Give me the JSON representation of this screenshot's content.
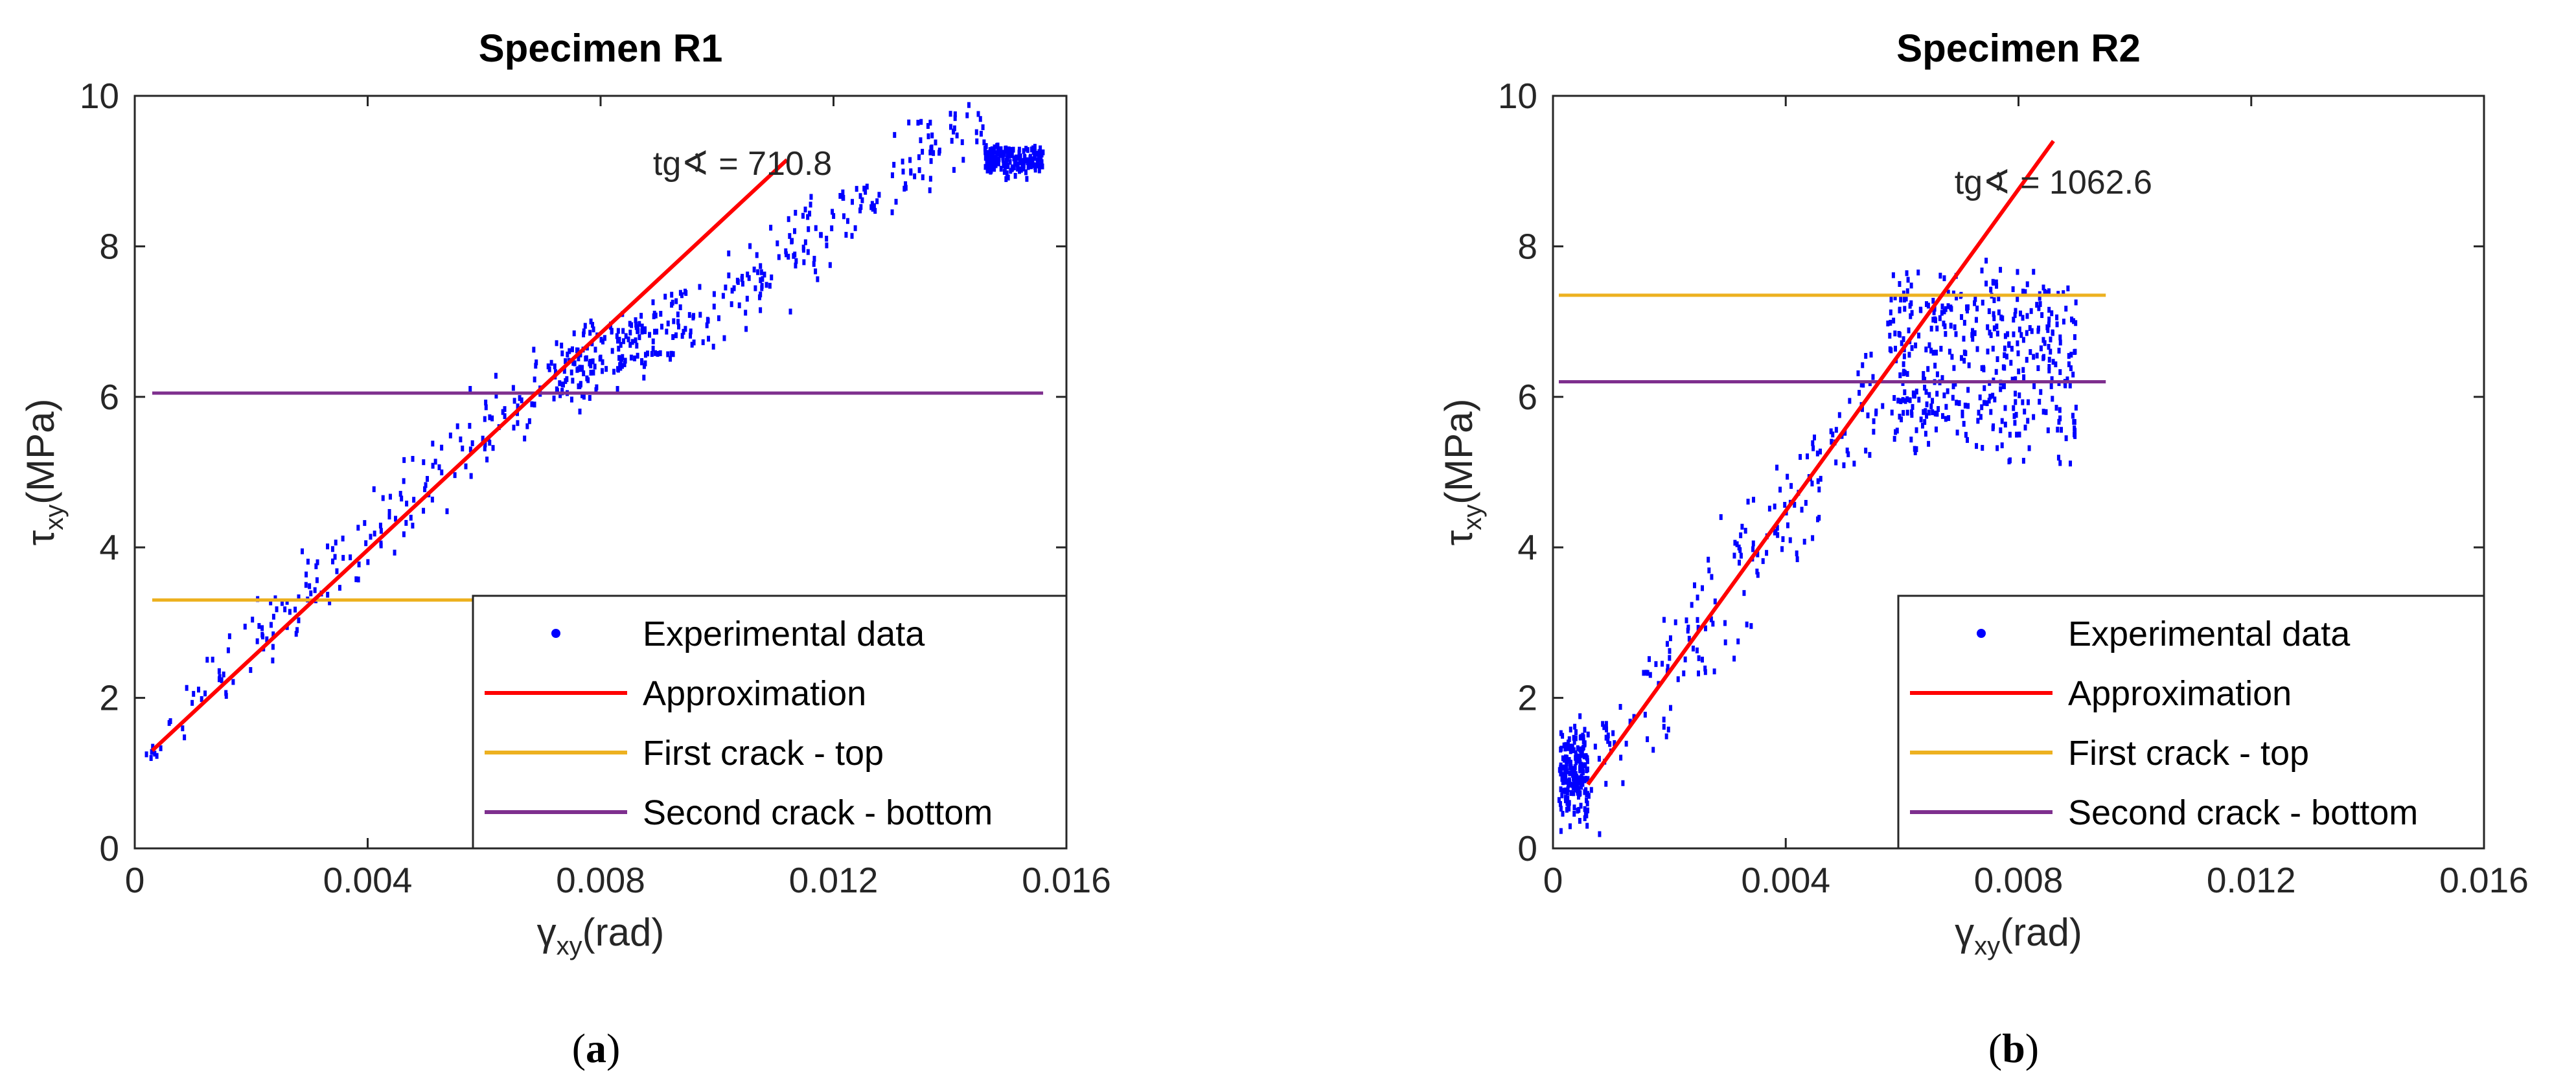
{
  "chart_data": [
    {
      "panel_label": "(a)",
      "panel_letter": "a",
      "type": "scatter",
      "title": "Specimen R1",
      "xlabel_main": "γ",
      "xlabel_sub": "xy",
      "xlabel_unit": "(rad)",
      "ylabel_main": "τ",
      "ylabel_sub": "xy",
      "ylabel_unit": "(MPa)",
      "xlim": [
        0,
        0.016
      ],
      "ylim": [
        0,
        10
      ],
      "x_ticks": [
        0,
        0.004,
        0.008,
        0.012,
        0.016
      ],
      "x_tick_labels": [
        "0",
        "0.004",
        "0.008",
        "0.012",
        "0.016"
      ],
      "y_ticks": [
        0,
        2,
        4,
        6,
        8,
        10
      ],
      "y_tick_labels": [
        "0",
        "2",
        "4",
        "6",
        "8",
        "10"
      ],
      "annotation": "tg∢ = 710.8",
      "annotation_at": {
        "x": 0.0089,
        "y": 8.95
      },
      "scatter_seed": 12345,
      "scatter_count": 720,
      "scatter_segments": [
        {
          "x0": 0.0002,
          "x1": 0.0072,
          "slope": 730,
          "intercept": 1.18,
          "noise": 0.28
        },
        {
          "x0": 0.0072,
          "x1": 0.0095,
          "slope": 380,
          "intercept": 3.5,
          "noise": 0.25
        },
        {
          "x0": 0.0095,
          "x1": 0.0146,
          "slope": 560,
          "intercept": 1.6,
          "noise": 0.28
        },
        {
          "x0": 0.0146,
          "x1": 0.0156,
          "slope": 0,
          "intercept": 9.15,
          "noise": 0.1
        }
      ],
      "approximation": {
        "x": [
          0.0003,
          0.0112
        ],
        "y": [
          1.3,
          9.15
        ]
      },
      "first_crack_top": {
        "y": 3.3,
        "x": [
          0.0003,
          0.0156
        ]
      },
      "second_crack_bottom": {
        "y": 6.05,
        "x": [
          0.0003,
          0.0156
        ]
      },
      "legend": {
        "position": "bottom-right",
        "entries": [
          {
            "label": "Experimental data",
            "kind": "marker",
            "color": "#0000ff"
          },
          {
            "label": "Approximation",
            "kind": "line",
            "color": "#ff0000"
          },
          {
            "label": "First crack - top",
            "kind": "line",
            "color": "#edb120"
          },
          {
            "label": "Second crack - bottom",
            "kind": "line",
            "color": "#7e2f8e"
          }
        ]
      }
    },
    {
      "panel_label": "(b)",
      "panel_letter": "b",
      "type": "scatter",
      "title": "Specimen R2",
      "xlabel_main": "γ",
      "xlabel_sub": "xy",
      "xlabel_unit": "(rad)",
      "ylabel_main": "τ",
      "ylabel_sub": "xy",
      "ylabel_unit": "(MPa)",
      "xlim": [
        0,
        0.016
      ],
      "ylim": [
        0,
        10
      ],
      "x_ticks": [
        0,
        0.004,
        0.008,
        0.012,
        0.016
      ],
      "x_tick_labels": [
        "0",
        "0.004",
        "0.008",
        "0.012",
        "0.016"
      ],
      "y_ticks": [
        0,
        2,
        4,
        6,
        8,
        10
      ],
      "y_tick_labels": [
        "0",
        "2",
        "4",
        "6",
        "8",
        "10"
      ],
      "annotation": "tg∢ = 1062.6",
      "annotation_at": {
        "x": 0.0069,
        "y": 8.7
      },
      "scatter_seed": 67890,
      "scatter_count": 780,
      "scatter_segments": [
        {
          "x0": 0.0001,
          "x1": 0.0006,
          "slope": 0,
          "intercept": 1.0,
          "noise": 0.3
        },
        {
          "x0": 0.0006,
          "x1": 0.0062,
          "slope": 1080,
          "intercept": 0.2,
          "noise": 0.45
        },
        {
          "x0": 0.0058,
          "x1": 0.009,
          "slope": 0,
          "intercept": 7.0,
          "noise": 0.35
        },
        {
          "x0": 0.0058,
          "x1": 0.009,
          "slope": 0,
          "intercept": 5.9,
          "noise": 0.35
        }
      ],
      "approximation": {
        "x": [
          0.0006,
          0.0086
        ],
        "y": [
          0.85,
          9.4
        ]
      },
      "first_crack_top": {
        "y": 7.35,
        "x": [
          0.0001,
          0.0095
        ]
      },
      "second_crack_bottom": {
        "y": 6.2,
        "x": [
          0.0001,
          0.0095
        ]
      },
      "legend": {
        "position": "bottom-right",
        "entries": [
          {
            "label": "Experimental data",
            "kind": "marker",
            "color": "#0000ff"
          },
          {
            "label": "Approximation",
            "kind": "line",
            "color": "#ff0000"
          },
          {
            "label": "First crack - top",
            "kind": "line",
            "color": "#edb120"
          },
          {
            "label": "Second crack - bottom",
            "kind": "line",
            "color": "#7e2f8e"
          }
        ]
      }
    }
  ]
}
